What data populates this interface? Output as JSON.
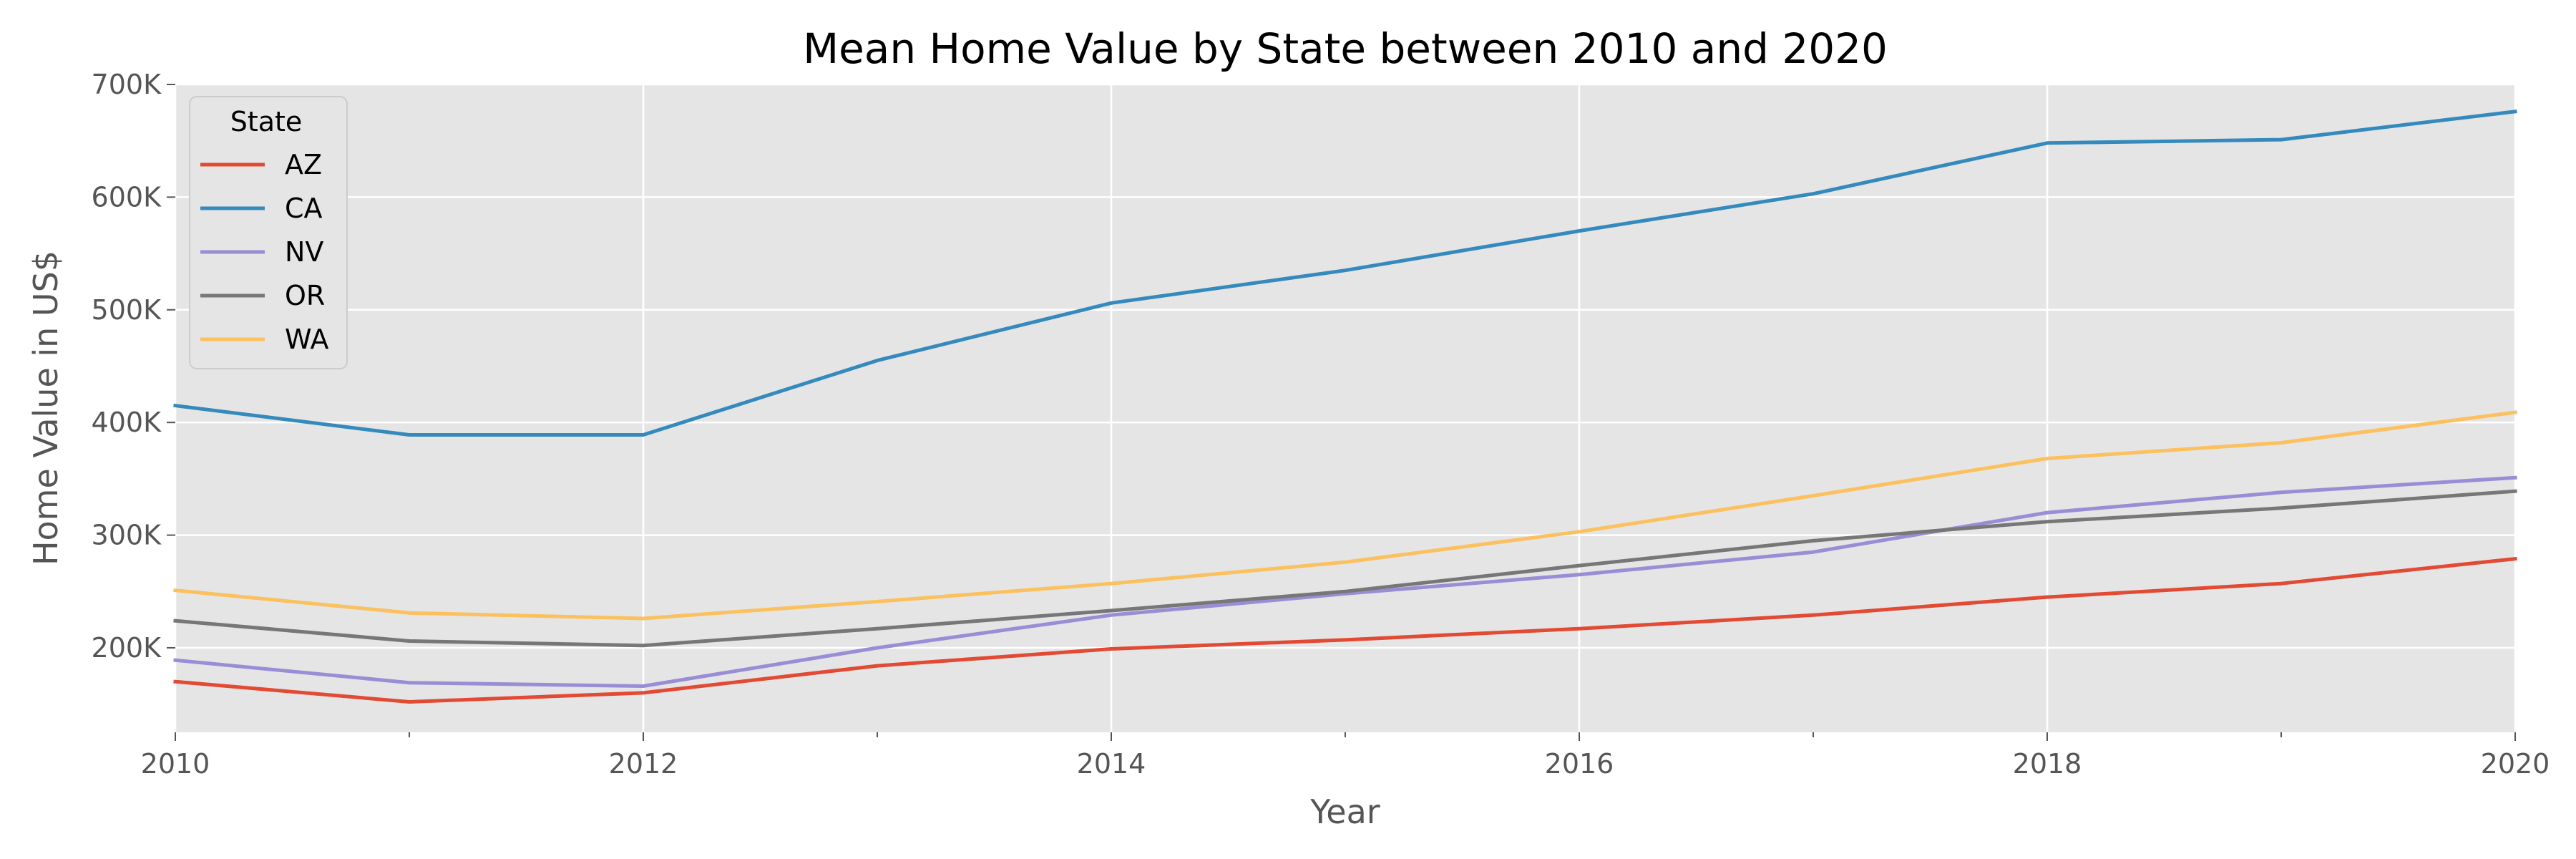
{
  "chart_data": {
    "type": "line",
    "title": "Mean Home Value by State between 2010 and 2020",
    "xlabel": "Year",
    "ylabel": "Home Value in US$",
    "x": [
      2010,
      2011,
      2012,
      2013,
      2014,
      2015,
      2016,
      2017,
      2018,
      2019,
      2020
    ],
    "xlim": [
      2010,
      2020
    ],
    "ylim": [
      125000,
      700000
    ],
    "x_ticks": [
      2010,
      2012,
      2014,
      2016,
      2018,
      2020
    ],
    "x_tick_labels": [
      "2010",
      "2012",
      "2014",
      "2016",
      "2018",
      "2020"
    ],
    "y_ticks": [
      200000,
      300000,
      400000,
      500000,
      600000,
      700000
    ],
    "y_tick_labels": [
      "200K",
      "300K",
      "400K",
      "500K",
      "600K",
      "700K"
    ],
    "grid": true,
    "background": "#e5e5e5",
    "legend": {
      "title": "State",
      "position": "upper-left"
    },
    "series": [
      {
        "name": "AZ",
        "color": "#e24a33",
        "values": [
          170000,
          152000,
          160000,
          184000,
          199000,
          207000,
          217000,
          229000,
          245000,
          257000,
          279000
        ]
      },
      {
        "name": "CA",
        "color": "#348abd",
        "values": [
          415000,
          389000,
          389000,
          455000,
          506000,
          535000,
          570000,
          603000,
          648000,
          651000,
          676000
        ]
      },
      {
        "name": "NV",
        "color": "#988ed5",
        "values": [
          189000,
          169000,
          166000,
          200000,
          229000,
          248000,
          265000,
          285000,
          320000,
          338000,
          351000
        ]
      },
      {
        "name": "OR",
        "color": "#777777",
        "values": [
          224000,
          206000,
          202000,
          217000,
          233000,
          250000,
          273000,
          295000,
          312000,
          324000,
          339000
        ]
      },
      {
        "name": "WA",
        "color": "#fbc15e",
        "values": [
          251000,
          231000,
          226000,
          241000,
          257000,
          276000,
          303000,
          335000,
          368000,
          382000,
          409000
        ]
      }
    ]
  }
}
